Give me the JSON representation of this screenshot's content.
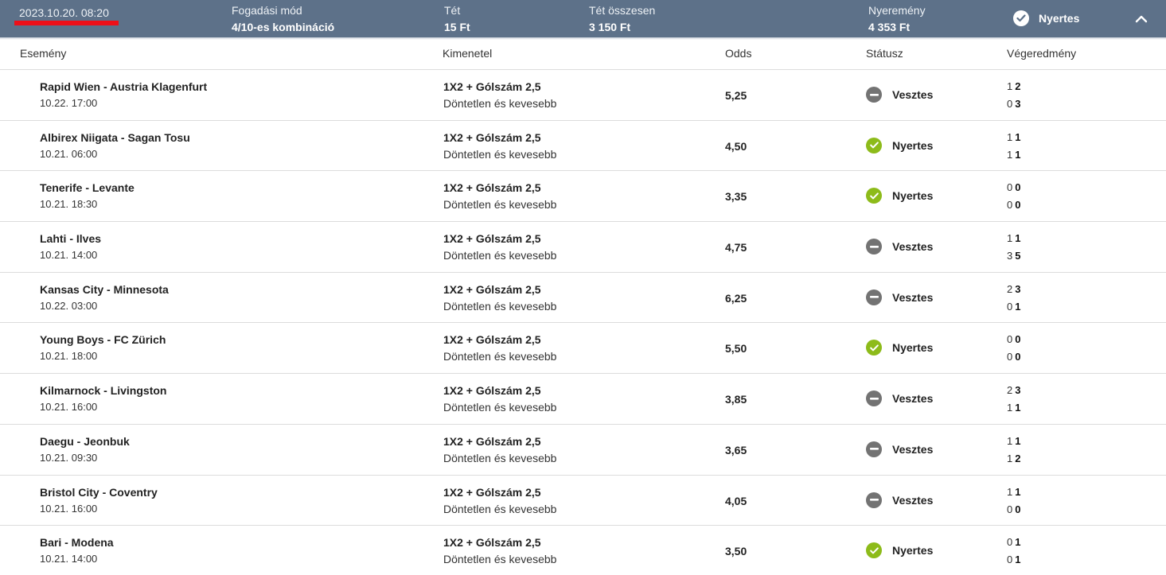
{
  "summary": {
    "date": "2023.10.20. 08:20",
    "bet_mode_label": "Fogadási mód",
    "bet_mode_value": "4/10-es kombináció",
    "stake_label": "Tét",
    "stake_value": "15 Ft",
    "total_stake_label": "Tét összesen",
    "total_stake_value": "3 150 Ft",
    "winnings_label": "Nyeremény",
    "winnings_value": "4 353 Ft",
    "status": "Nyertes",
    "status_icon": "check-circle-icon",
    "collapse_icon": "chevron-up-icon",
    "highlight_color": "#ee0f18"
  },
  "columns": {
    "event": "Esemény",
    "outcome": "Kimenetel",
    "odds": "Odds",
    "status": "Státusz",
    "result": "Végeredmény"
  },
  "colors": {
    "header_bg": "#5d7189",
    "won": "#8dbb1a",
    "lost": "#737373"
  },
  "events": [
    {
      "name": "Rapid Wien - Austria Klagenfurt",
      "date": "10.22. 17:00",
      "market": "1X2 + Gólszám 2,5",
      "selection": "Döntetlen és kevesebb",
      "odds": "5,25",
      "status": "Vesztes",
      "won": false,
      "home_ht": "1",
      "home_ft": "2",
      "away_ht": "0",
      "away_ft": "3"
    },
    {
      "name": "Albirex Niigata - Sagan Tosu",
      "date": "10.21. 06:00",
      "market": "1X2 + Gólszám 2,5",
      "selection": "Döntetlen és kevesebb",
      "odds": "4,50",
      "status": "Nyertes",
      "won": true,
      "home_ht": "1",
      "home_ft": "1",
      "away_ht": "1",
      "away_ft": "1"
    },
    {
      "name": "Tenerife - Levante",
      "date": "10.21. 18:30",
      "market": "1X2 + Gólszám 2,5",
      "selection": "Döntetlen és kevesebb",
      "odds": "3,35",
      "status": "Nyertes",
      "won": true,
      "home_ht": "0",
      "home_ft": "0",
      "away_ht": "0",
      "away_ft": "0"
    },
    {
      "name": "Lahti - Ilves",
      "date": "10.21. 14:00",
      "market": "1X2 + Gólszám 2,5",
      "selection": "Döntetlen és kevesebb",
      "odds": "4,75",
      "status": "Vesztes",
      "won": false,
      "home_ht": "1",
      "home_ft": "1",
      "away_ht": "3",
      "away_ft": "5"
    },
    {
      "name": "Kansas City - Minnesota",
      "date": "10.22. 03:00",
      "market": "1X2 + Gólszám 2,5",
      "selection": "Döntetlen és kevesebb",
      "odds": "6,25",
      "status": "Vesztes",
      "won": false,
      "home_ht": "2",
      "home_ft": "3",
      "away_ht": "0",
      "away_ft": "1"
    },
    {
      "name": "Young Boys - FC Zürich",
      "date": "10.21. 18:00",
      "market": "1X2 + Gólszám 2,5",
      "selection": "Döntetlen és kevesebb",
      "odds": "5,50",
      "status": "Nyertes",
      "won": true,
      "home_ht": "0",
      "home_ft": "0",
      "away_ht": "0",
      "away_ft": "0"
    },
    {
      "name": "Kilmarnock - Livingston",
      "date": "10.21. 16:00",
      "market": "1X2 + Gólszám 2,5",
      "selection": "Döntetlen és kevesebb",
      "odds": "3,85",
      "status": "Vesztes",
      "won": false,
      "home_ht": "2",
      "home_ft": "3",
      "away_ht": "1",
      "away_ft": "1"
    },
    {
      "name": "Daegu - Jeonbuk",
      "date": "10.21. 09:30",
      "market": "1X2 + Gólszám 2,5",
      "selection": "Döntetlen és kevesebb",
      "odds": "3,65",
      "status": "Vesztes",
      "won": false,
      "home_ht": "1",
      "home_ft": "1",
      "away_ht": "1",
      "away_ft": "2"
    },
    {
      "name": "Bristol City - Coventry",
      "date": "10.21. 16:00",
      "market": "1X2 + Gólszám 2,5",
      "selection": "Döntetlen és kevesebb",
      "odds": "4,05",
      "status": "Vesztes",
      "won": false,
      "home_ht": "1",
      "home_ft": "1",
      "away_ht": "0",
      "away_ft": "0"
    },
    {
      "name": "Bari - Modena",
      "date": "10.21. 14:00",
      "market": "1X2 + Gólszám 2,5",
      "selection": "Döntetlen és kevesebb",
      "odds": "3,50",
      "status": "Nyertes",
      "won": true,
      "home_ht": "0",
      "home_ft": "1",
      "away_ht": "0",
      "away_ft": "1"
    }
  ]
}
